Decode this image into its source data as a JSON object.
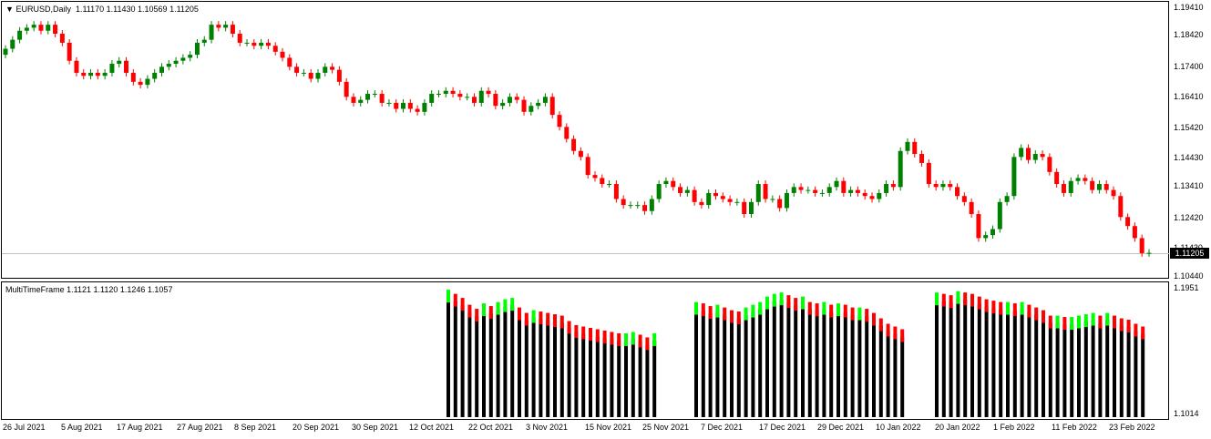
{
  "main_panel": {
    "symbol": "EURUSD,Daily",
    "ohlc": "1.11170 1.11430 1.10569 1.11205",
    "price_axis": [
      "1.19410",
      "1.18420",
      "1.17400",
      "1.16410",
      "1.15420",
      "1.14430",
      "1.13410",
      "1.12420",
      "1.11430",
      "1.10440"
    ],
    "current_price": "1.11205",
    "colors": {
      "bull": "#008000",
      "bear": "#ff0000",
      "grid": "#c0c0c0"
    }
  },
  "sub_panel": {
    "title": "MultiTimeFrame 1.1121 1.1120 1.1246 1.1057",
    "axis_top": "1.1951",
    "axis_bottom": "1.1014",
    "colors": {
      "body": "#000000",
      "up": "#00ff00",
      "down": "#ff0000"
    }
  },
  "time_axis": [
    "26 Jul 2021",
    "5 Aug 2021",
    "17 Aug 2021",
    "27 Aug 2021",
    "8 Sep 2021",
    "20 Sep 2021",
    "30 Sep 2021",
    "12 Oct 2021",
    "22 Oct 2021",
    "3 Nov 2021",
    "15 Nov 2021",
    "25 Nov 2021",
    "7 Dec 2021",
    "17 Dec 2021",
    "29 Dec 2021",
    "10 Jan 2022",
    "20 Jan 2022",
    "1 Feb 2022",
    "11 Feb 2022",
    "23 Feb 2022"
  ],
  "chart_data": {
    "type": "candlestick",
    "x_range": [
      "23 Jul 2021",
      "25 Feb 2022"
    ],
    "y_range": [
      1.1044,
      1.1941
    ],
    "closes": [
      1.18,
      1.183,
      1.186,
      1.187,
      1.188,
      1.186,
      1.188,
      1.185,
      1.182,
      1.176,
      1.172,
      1.171,
      1.172,
      1.171,
      1.172,
      1.175,
      1.176,
      1.172,
      1.169,
      1.168,
      1.17,
      1.172,
      1.174,
      1.175,
      1.176,
      1.177,
      1.178,
      1.182,
      1.183,
      1.188,
      1.187,
      1.188,
      1.185,
      1.182,
      1.182,
      1.181,
      1.182,
      1.181,
      1.179,
      1.177,
      1.174,
      1.172,
      1.172,
      1.17,
      1.172,
      1.174,
      1.173,
      1.169,
      1.164,
      1.162,
      1.163,
      1.165,
      1.165,
      1.162,
      1.162,
      1.16,
      1.162,
      1.16,
      1.159,
      1.162,
      1.165,
      1.165,
      1.166,
      1.165,
      1.164,
      1.164,
      1.162,
      1.166,
      1.165,
      1.161,
      1.162,
      1.164,
      1.163,
      1.159,
      1.161,
      1.162,
      1.164,
      1.158,
      1.154,
      1.15,
      1.146,
      1.144,
      1.138,
      1.137,
      1.135,
      1.135,
      1.13,
      1.128,
      1.128,
      1.128,
      1.126,
      1.13,
      1.135,
      1.136,
      1.134,
      1.132,
      1.133,
      1.129,
      1.128,
      1.132,
      1.131,
      1.13,
      1.129,
      1.129,
      1.125,
      1.129,
      1.135,
      1.13,
      1.13,
      1.127,
      1.132,
      1.134,
      1.133,
      1.133,
      1.132,
      1.132,
      1.134,
      1.136,
      1.132,
      1.133,
      1.132,
      1.131,
      1.13,
      1.132,
      1.135,
      1.134,
      1.146,
      1.149,
      1.145,
      1.142,
      1.135,
      1.134,
      1.135,
      1.134,
      1.131,
      1.129,
      1.125,
      1.117,
      1.118,
      1.12,
      1.129,
      1.131,
      1.144,
      1.147,
      1.143,
      1.145,
      1.144,
      1.139,
      1.135,
      1.132,
      1.136,
      1.137,
      1.136,
      1.133,
      1.135,
      1.133,
      1.131,
      1.124,
      1.121,
      1.117,
      1.112,
      1.1121
    ],
    "mtf": {
      "axis": [
        1.1014,
        1.1951
      ],
      "segments": [
        {
          "highs": [
            1.195,
            1.192,
            1.189,
            1.184,
            1.181,
            1.185,
            1.183,
            1.186,
            1.188,
            1.189,
            1.182,
            1.178,
            1.18,
            1.179,
            1.178,
            1.177,
            1.176,
            1.172,
            1.169,
            1.168,
            1.167,
            1.166,
            1.165,
            1.164,
            1.163,
            1.163,
            1.164,
            1.162,
            1.16,
            1.163
          ]
        },
        {
          "highs": [
            1.186,
            1.185,
            1.183,
            1.184,
            1.182,
            1.18,
            1.179,
            1.182,
            1.184,
            1.186,
            1.19,
            1.192,
            1.193,
            1.191,
            1.189,
            1.19,
            1.186,
            1.185,
            1.186,
            1.184,
            1.185,
            1.184,
            1.182,
            1.182,
            1.181,
            1.178,
            1.174,
            1.17,
            1.168,
            1.166
          ]
        },
        {
          "highs": [
            1.193,
            1.192,
            1.191,
            1.194,
            1.193,
            1.192,
            1.19,
            1.188,
            1.187,
            1.186,
            1.186,
            1.185,
            1.186,
            1.184,
            1.182,
            1.18,
            1.176,
            1.176,
            1.175,
            1.175,
            1.176,
            1.177,
            1.178,
            1.176,
            1.178,
            1.176,
            1.174,
            1.173,
            1.17,
            1.168
          ]
        }
      ]
    }
  }
}
